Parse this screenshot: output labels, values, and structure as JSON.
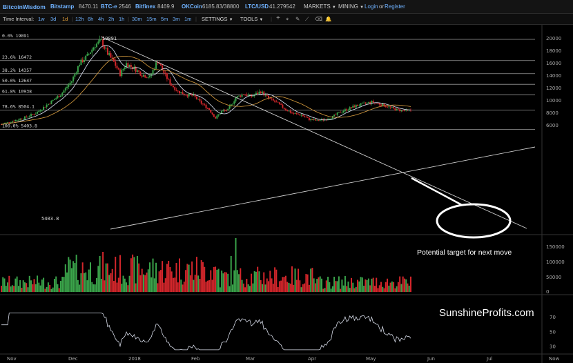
{
  "topbar": {
    "logo": "BitcoinWisdom",
    "tickers": [
      {
        "name": "Bitstamp",
        "value": "8470.11"
      },
      {
        "name": "BTC-e",
        "value": "2546"
      },
      {
        "name": "Bitfinex",
        "value": "8469.9"
      },
      {
        "name": "OKCoin",
        "value": "6185.83/38800"
      },
      {
        "name": "LTC/USD",
        "value": "41.279542"
      }
    ],
    "markets_label": "MARKETS",
    "mining_label": "MINING",
    "login_label": "Login",
    "or_label": "or",
    "register_label": "Register"
  },
  "toolbar": {
    "time_interval_label": "Time Interval:",
    "intervals": [
      "1w",
      "3d",
      "1d",
      "12h",
      "6h",
      "4h",
      "2h",
      "1h",
      "30m",
      "15m",
      "5m",
      "3m",
      "1m"
    ],
    "active_interval": "1d",
    "settings_label": "SETTINGS",
    "tools_label": "TOOLS",
    "icons": [
      "plus-icon",
      "crosshair-icon",
      "pen-icon",
      "line-tool-icon",
      "eraser-icon",
      "alarm-icon"
    ]
  },
  "chart_data": {
    "type": "candlestick",
    "price_axis_ticks": [
      20000,
      18000,
      16000,
      14000,
      12000,
      10000,
      8000,
      6000
    ],
    "volume_axis_ticks": [
      "150000",
      "100000",
      "50000",
      "0"
    ],
    "rsi_axis_ticks": [
      70,
      50,
      30
    ],
    "x_ticks": [
      "Nov",
      "Dec",
      "2018",
      "Feb",
      "Mar",
      "Apr",
      "May",
      "Jun",
      "Jul",
      "Now"
    ],
    "fib_levels": [
      {
        "label": "0.0% 19891",
        "value": 19891
      },
      {
        "label": "23.6% 16472",
        "value": 16472
      },
      {
        "label": "38.2% 14357",
        "value": 14357
      },
      {
        "label": "50.0% 12647",
        "value": 12647
      },
      {
        "label": "61.8% 10938",
        "value": 10938
      },
      {
        "label": "78.6% 8504.1",
        "value": 8504.1
      },
      {
        "label": "100.0% 5403.8",
        "value": 5403.8
      }
    ],
    "high_label": "19891",
    "low_label": "5403.8",
    "annotation": "Potential target for next move",
    "watermark": "SunshineProfits.com",
    "colors": {
      "up": "#3aa34a",
      "down": "#d3262b",
      "ma_fast": "#cfd6e6",
      "ma_slow": "#c8913a",
      "fib": "#9a9a9a",
      "rsi": "#d6dbe8"
    }
  }
}
